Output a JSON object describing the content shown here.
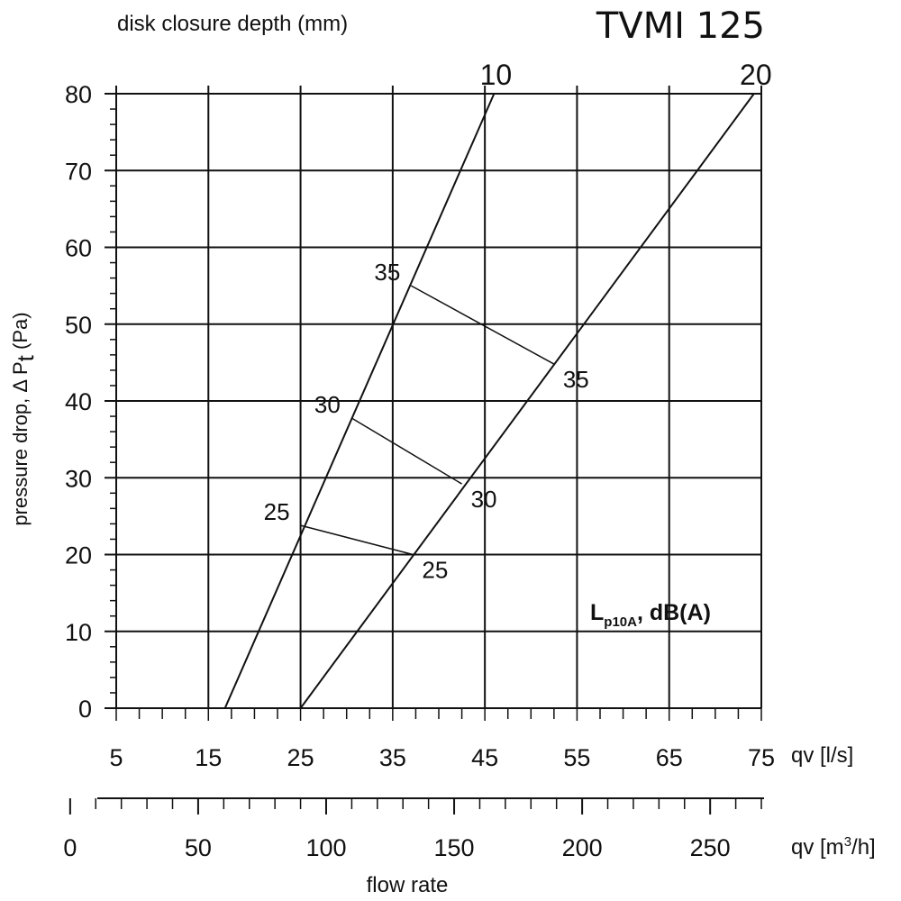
{
  "chart_data": {
    "type": "line",
    "title": "TVMI 125",
    "top_axis_label": "disk closure depth (mm)",
    "ylabel_main": "pressure drop,  Δ P",
    "ylabel_sub": "t",
    "ylabel_unit": " (Pa)",
    "xlabel_ls": "qv [l/s]",
    "xlabel_m3h_prefix": "qv [m",
    "xlabel_m3h_sup": "3",
    "xlabel_m3h_suffix": "/h]",
    "xlabel_bottom": "flow rate",
    "sound_label_L": "L",
    "sound_label_sub": "p10A",
    "sound_label_rest": ", dB(A)",
    "xlim_ls": [
      5,
      75
    ],
    "ylim": [
      0,
      80
    ],
    "x_ticks_ls": [
      5,
      15,
      25,
      35,
      45,
      55,
      65,
      75
    ],
    "x_ticks_m3h": [
      0,
      50,
      100,
      150,
      200,
      250
    ],
    "y_ticks": [
      0,
      10,
      20,
      30,
      40,
      50,
      60,
      70,
      80
    ],
    "grid": true,
    "series": [
      {
        "name": "10",
        "x": [
          16.8,
          46.0
        ],
        "y": [
          0,
          80
        ]
      },
      {
        "name": "20",
        "x": [
          25.0,
          74.2
        ],
        "y": [
          0,
          80
        ]
      }
    ],
    "sound_lines": [
      {
        "label_left": "25",
        "label_right": "25",
        "x": [
          25.0,
          37.2
        ],
        "y": [
          23.8,
          20.0
        ]
      },
      {
        "label_left": "30",
        "label_right": "30",
        "x": [
          30.5,
          42.5
        ],
        "y": [
          37.8,
          29.2
        ]
      },
      {
        "label_left": "35",
        "label_right": "35",
        "x": [
          37.0,
          52.5
        ],
        "y": [
          55.0,
          44.8
        ]
      }
    ]
  }
}
